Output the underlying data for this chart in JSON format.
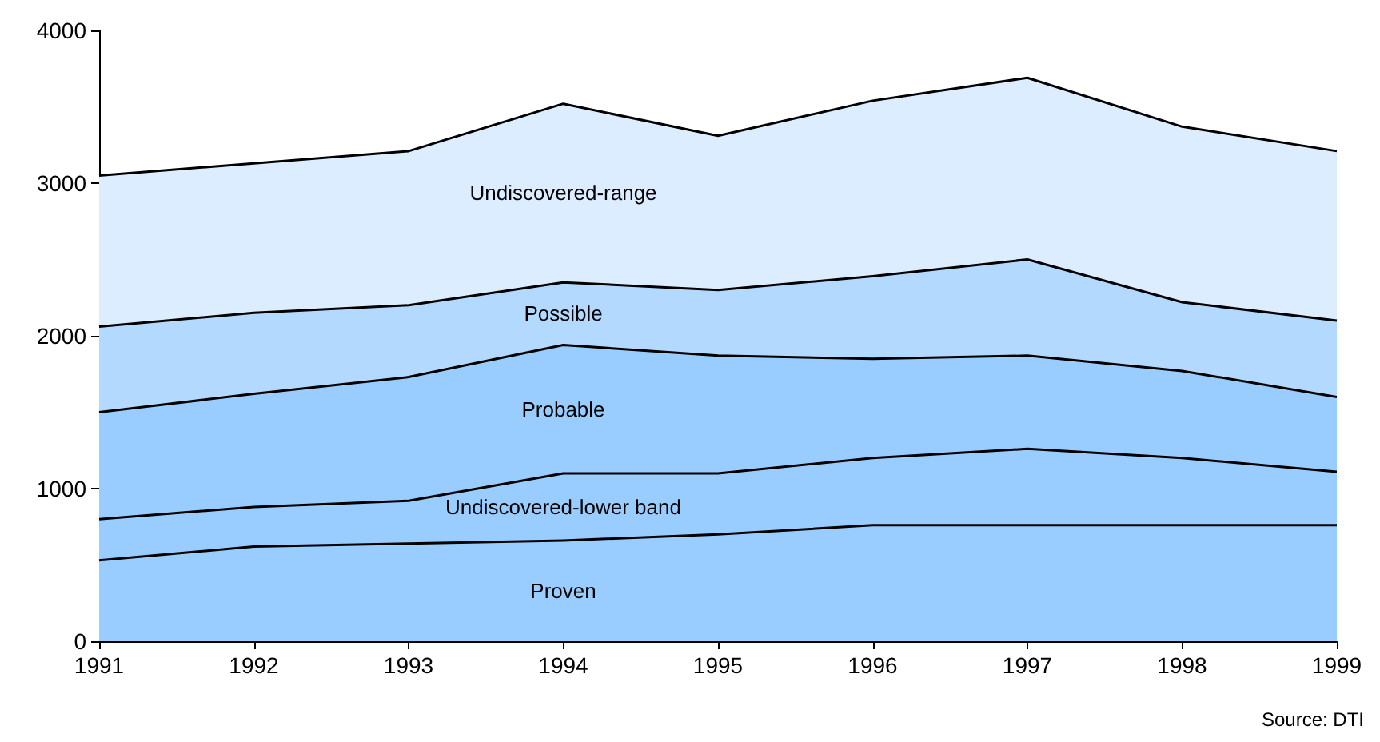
{
  "chart_data": {
    "type": "area",
    "stacked": true,
    "categories": [
      "1991",
      "1992",
      "1993",
      "1994",
      "1995",
      "1996",
      "1997",
      "1998",
      "1999"
    ],
    "series": [
      {
        "name": "Proven",
        "color": "#99ccff",
        "values": [
          530,
          620,
          640,
          660,
          700,
          760,
          760,
          760,
          760
        ]
      },
      {
        "name": "Undiscovered-lower band",
        "color": "#99ccff",
        "values": [
          270,
          260,
          280,
          440,
          400,
          440,
          500,
          440,
          350
        ]
      },
      {
        "name": "Probable",
        "color": "#99ccff",
        "values": [
          700,
          740,
          810,
          840,
          770,
          650,
          610,
          570,
          490
        ]
      },
      {
        "name": "Possible",
        "color": "#b3d9ff",
        "values": [
          560,
          530,
          470,
          410,
          430,
          540,
          630,
          450,
          500
        ]
      },
      {
        "name": "Undiscovered-range",
        "color": "#dcedff",
        "values": [
          990,
          980,
          1010,
          1170,
          1010,
          1150,
          1190,
          1150,
          1110
        ]
      }
    ],
    "ylim": [
      0,
      4000
    ],
    "yticks": [
      0,
      1000,
      2000,
      3000,
      4000
    ],
    "grid": false,
    "legend": false,
    "marker": "none",
    "line_style": "solid",
    "annotations": [
      "Source: DTI"
    ]
  }
}
